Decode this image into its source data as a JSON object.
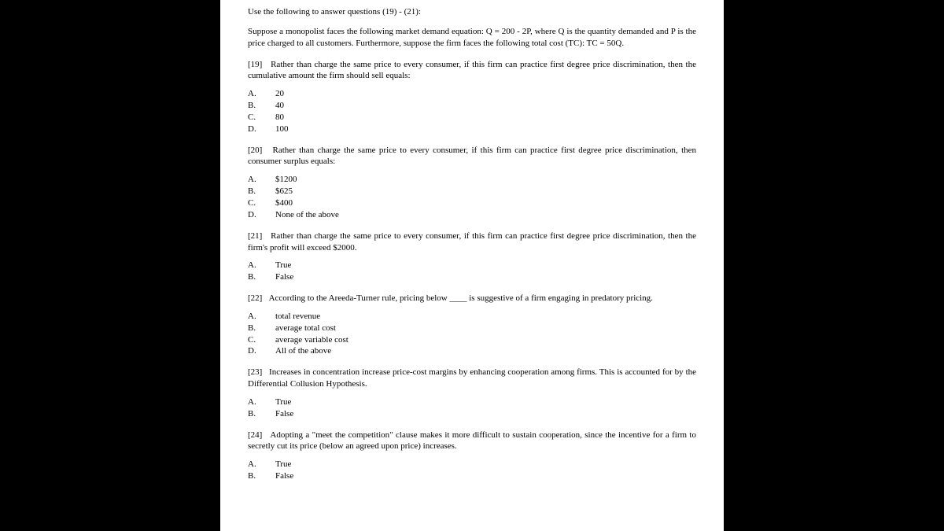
{
  "intro": "Use the following to answer questions (19) - (21):",
  "setup": "Suppose a monopolist faces the following market demand equation: Q = 200 - 2P, where Q is the quantity demanded and P is the price charged to all customers.  Furthermore, suppose the firm faces the following total cost (TC): TC = 50Q.",
  "questions": [
    {
      "num": "[19]",
      "stem": "Rather than charge the same price to every consumer, if this firm can practice first degree price discrimination, then the cumulative amount the firm should sell equals:",
      "options": [
        {
          "letter": "A.",
          "text": "20"
        },
        {
          "letter": "B.",
          "text": "40"
        },
        {
          "letter": "C.",
          "text": "80"
        },
        {
          "letter": "D.",
          "text": "100"
        }
      ]
    },
    {
      "num": "[20]",
      "stem": "Rather than charge the same price to every consumer, if this firm can practice first degree price discrimination, then consumer surplus equals:",
      "options": [
        {
          "letter": "A.",
          "text": "$1200"
        },
        {
          "letter": "B.",
          "text": "$625"
        },
        {
          "letter": "C.",
          "text": "$400"
        },
        {
          "letter": "D.",
          "text": "None of the above"
        }
      ]
    },
    {
      "num": "[21]",
      "stem": "Rather than charge the same price to every consumer, if this firm can practice first degree price discrimination, then the firm's profit will exceed $2000.",
      "options": [
        {
          "letter": "A.",
          "text": "True"
        },
        {
          "letter": "B.",
          "text": "False"
        }
      ]
    },
    {
      "num": "[22]",
      "stem": "According to the Areeda-Turner rule, pricing below ____ is suggestive of a firm engaging in predatory pricing.",
      "options": [
        {
          "letter": "A.",
          "text": "total revenue"
        },
        {
          "letter": "B.",
          "text": "average total cost"
        },
        {
          "letter": "C.",
          "text": "average variable cost"
        },
        {
          "letter": "D.",
          "text": "All of the above"
        }
      ]
    },
    {
      "num": "[23]",
      "stem": "Increases in concentration increase price-cost margins by enhancing cooperation among firms.  This is accounted for by the Differential Collusion Hypothesis.",
      "options": [
        {
          "letter": "A.",
          "text": "True"
        },
        {
          "letter": "B.",
          "text": "False"
        }
      ]
    },
    {
      "num": "[24]",
      "stem": "Adopting a \"meet the competition\" clause makes it more difficult to sustain cooperation, since the incentive for a firm to secretly cut its price (below an agreed upon price) increases.",
      "options": [
        {
          "letter": "A.",
          "text": "True"
        },
        {
          "letter": "B.",
          "text": "False"
        }
      ]
    }
  ]
}
